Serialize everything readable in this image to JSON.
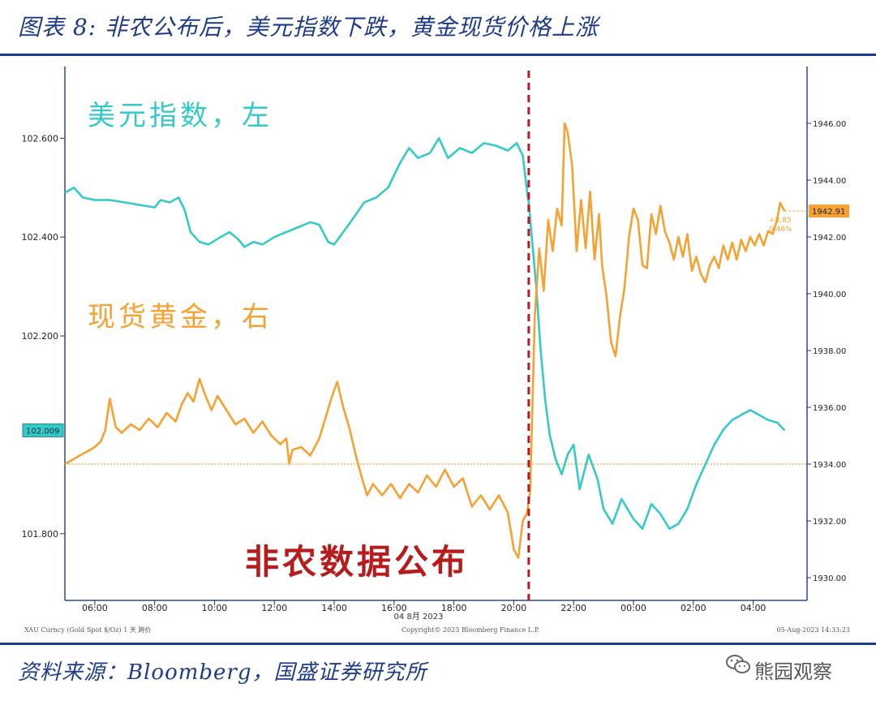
{
  "figure": {
    "title": "图表 8: 非农公布后，美元指数下跌，黄金现货价格上涨",
    "source": "资料来源：Bloomberg，国盛证券研究所",
    "watermark": "熊园观察"
  },
  "colors": {
    "usd": "#35c9c9",
    "gold": "#f5a233",
    "event_line": "#b71c1c",
    "ref_line": "#f5a233",
    "frame": "#2b4a8a",
    "brand_blue": "#1f3c88"
  },
  "chart_data": {
    "type": "line",
    "x_ticks": [
      "06:00",
      "08:00",
      "10:00",
      "12:00",
      "14:00",
      "16:00",
      "18:00",
      "20:00",
      "22:00",
      "00:00",
      "02:00",
      "04:00"
    ],
    "x_date_label": "04 8月 2023",
    "x_range_hours": [
      5.0,
      29.8
    ],
    "left_axis": {
      "ticks": [
        "101.800",
        "102.200",
        "102.400",
        "102.600"
      ],
      "tick_values": [
        101.8,
        102.2,
        102.4,
        102.6
      ],
      "range": [
        101.665,
        102.745
      ]
    },
    "right_axis": {
      "ticks": [
        "1930.00",
        "1932.00",
        "1934.00",
        "1936.00",
        "1938.00",
        "1940.00",
        "1942.00",
        "1944.00",
        "1946.00"
      ],
      "tick_values": [
        1930,
        1932,
        1934,
        1936,
        1938,
        1940,
        1942,
        1944,
        1946
      ],
      "range": [
        1929.2,
        1948.0
      ]
    },
    "event_time_hours": 20.5,
    "event_label": "非农数据公布",
    "reference_level_right": 1934.0,
    "series": [
      {
        "name": "美元指数，左",
        "axis": "left",
        "points": [
          [
            5.0,
            102.49
          ],
          [
            5.3,
            102.5
          ],
          [
            5.6,
            102.48
          ],
          [
            6.0,
            102.475
          ],
          [
            6.5,
            102.475
          ],
          [
            7.0,
            102.47
          ],
          [
            7.5,
            102.465
          ],
          [
            8.0,
            102.46
          ],
          [
            8.2,
            102.475
          ],
          [
            8.5,
            102.47
          ],
          [
            8.8,
            102.48
          ],
          [
            9.0,
            102.455
          ],
          [
            9.2,
            102.41
          ],
          [
            9.5,
            102.39
          ],
          [
            9.8,
            102.385
          ],
          [
            10.2,
            102.4
          ],
          [
            10.5,
            102.41
          ],
          [
            10.8,
            102.395
          ],
          [
            11.0,
            102.38
          ],
          [
            11.3,
            102.39
          ],
          [
            11.6,
            102.385
          ],
          [
            12.0,
            102.4
          ],
          [
            12.4,
            102.41
          ],
          [
            12.8,
            102.42
          ],
          [
            13.2,
            102.43
          ],
          [
            13.5,
            102.425
          ],
          [
            13.8,
            102.39
          ],
          [
            14.0,
            102.385
          ],
          [
            14.3,
            102.41
          ],
          [
            14.6,
            102.435
          ],
          [
            15.0,
            102.47
          ],
          [
            15.4,
            102.48
          ],
          [
            15.8,
            102.5
          ],
          [
            16.2,
            102.55
          ],
          [
            16.5,
            102.58
          ],
          [
            16.8,
            102.56
          ],
          [
            17.2,
            102.57
          ],
          [
            17.5,
            102.6
          ],
          [
            17.8,
            102.56
          ],
          [
            18.2,
            102.58
          ],
          [
            18.6,
            102.57
          ],
          [
            19.0,
            102.59
          ],
          [
            19.4,
            102.585
          ],
          [
            19.8,
            102.575
          ],
          [
            20.1,
            102.59
          ],
          [
            20.3,
            102.565
          ],
          [
            20.45,
            102.49
          ],
          [
            20.5,
            102.47
          ],
          [
            20.6,
            102.4
          ],
          [
            20.75,
            102.3
          ],
          [
            20.9,
            102.17
          ],
          [
            21.05,
            102.07
          ],
          [
            21.2,
            102.0
          ],
          [
            21.4,
            101.95
          ],
          [
            21.6,
            101.92
          ],
          [
            21.8,
            101.96
          ],
          [
            22.0,
            101.98
          ],
          [
            22.2,
            101.89
          ],
          [
            22.5,
            101.96
          ],
          [
            22.8,
            101.91
          ],
          [
            23.0,
            101.85
          ],
          [
            23.3,
            101.82
          ],
          [
            23.6,
            101.87
          ],
          [
            24.0,
            101.83
          ],
          [
            24.3,
            101.81
          ],
          [
            24.6,
            101.86
          ],
          [
            24.9,
            101.84
          ],
          [
            25.2,
            101.81
          ],
          [
            25.5,
            101.82
          ],
          [
            25.8,
            101.85
          ],
          [
            26.1,
            101.9
          ],
          [
            26.4,
            101.94
          ],
          [
            26.7,
            101.98
          ],
          [
            27.0,
            102.01
          ],
          [
            27.3,
            102.03
          ],
          [
            27.6,
            102.04
          ],
          [
            27.9,
            102.05
          ],
          [
            28.2,
            102.04
          ],
          [
            28.5,
            102.03
          ],
          [
            28.8,
            102.025
          ],
          [
            29.05,
            102.009
          ]
        ]
      },
      {
        "name": "现货黄金，右",
        "axis": "right",
        "points": [
          [
            5.0,
            1934.0
          ],
          [
            5.5,
            1934.3
          ],
          [
            6.0,
            1934.6
          ],
          [
            6.2,
            1934.8
          ],
          [
            6.35,
            1935.2
          ],
          [
            6.5,
            1936.3
          ],
          [
            6.7,
            1935.3
          ],
          [
            6.9,
            1935.1
          ],
          [
            7.2,
            1935.4
          ],
          [
            7.5,
            1935.2
          ],
          [
            7.8,
            1935.6
          ],
          [
            8.1,
            1935.3
          ],
          [
            8.4,
            1935.8
          ],
          [
            8.7,
            1935.5
          ],
          [
            8.9,
            1936.1
          ],
          [
            9.1,
            1936.5
          ],
          [
            9.3,
            1936.2
          ],
          [
            9.5,
            1937.0
          ],
          [
            9.7,
            1936.4
          ],
          [
            9.9,
            1935.9
          ],
          [
            10.1,
            1936.4
          ],
          [
            10.4,
            1935.9
          ],
          [
            10.7,
            1935.4
          ],
          [
            11.0,
            1935.6
          ],
          [
            11.3,
            1935.1
          ],
          [
            11.6,
            1935.5
          ],
          [
            11.9,
            1935.0
          ],
          [
            12.2,
            1934.7
          ],
          [
            12.4,
            1934.9
          ],
          [
            12.5,
            1934.0
          ],
          [
            12.6,
            1934.5
          ],
          [
            12.9,
            1934.6
          ],
          [
            13.2,
            1934.3
          ],
          [
            13.5,
            1934.9
          ],
          [
            13.7,
            1935.6
          ],
          [
            13.9,
            1936.3
          ],
          [
            14.1,
            1936.9
          ],
          [
            14.3,
            1936.0
          ],
          [
            14.5,
            1935.3
          ],
          [
            14.7,
            1934.4
          ],
          [
            14.9,
            1933.6
          ],
          [
            15.1,
            1932.9
          ],
          [
            15.3,
            1933.3
          ],
          [
            15.6,
            1932.9
          ],
          [
            15.9,
            1933.3
          ],
          [
            16.2,
            1932.8
          ],
          [
            16.5,
            1933.3
          ],
          [
            16.8,
            1933.0
          ],
          [
            17.1,
            1933.6
          ],
          [
            17.4,
            1933.2
          ],
          [
            17.7,
            1933.8
          ],
          [
            18.0,
            1933.2
          ],
          [
            18.3,
            1933.5
          ],
          [
            18.6,
            1932.5
          ],
          [
            18.9,
            1932.9
          ],
          [
            19.2,
            1932.4
          ],
          [
            19.5,
            1932.9
          ],
          [
            19.8,
            1932.3
          ],
          [
            20.0,
            1931.0
          ],
          [
            20.15,
            1930.7
          ],
          [
            20.3,
            1932.0
          ],
          [
            20.45,
            1932.3
          ],
          [
            20.55,
            1933.1
          ],
          [
            20.7,
            1939.2
          ],
          [
            20.85,
            1941.6
          ],
          [
            21.0,
            1940.1
          ],
          [
            21.15,
            1942.6
          ],
          [
            21.3,
            1941.5
          ],
          [
            21.45,
            1943.0
          ],
          [
            21.6,
            1942.4
          ],
          [
            21.7,
            1946.0
          ],
          [
            21.8,
            1945.7
          ],
          [
            21.95,
            1944.5
          ],
          [
            22.1,
            1941.5
          ],
          [
            22.25,
            1943.3
          ],
          [
            22.4,
            1941.6
          ],
          [
            22.55,
            1943.6
          ],
          [
            22.7,
            1941.2
          ],
          [
            22.85,
            1942.8
          ],
          [
            22.95,
            1941.0
          ],
          [
            23.1,
            1939.9
          ],
          [
            23.25,
            1938.3
          ],
          [
            23.4,
            1937.8
          ],
          [
            23.55,
            1939.2
          ],
          [
            23.7,
            1940.2
          ],
          [
            23.85,
            1942.0
          ],
          [
            24.0,
            1943.0
          ],
          [
            24.15,
            1942.6
          ],
          [
            24.3,
            1941.0
          ],
          [
            24.45,
            1940.9
          ],
          [
            24.6,
            1942.8
          ],
          [
            24.75,
            1942.1
          ],
          [
            24.9,
            1943.1
          ],
          [
            25.05,
            1942.2
          ],
          [
            25.2,
            1941.8
          ],
          [
            25.35,
            1941.2
          ],
          [
            25.5,
            1942.0
          ],
          [
            25.65,
            1941.3
          ],
          [
            25.8,
            1942.1
          ],
          [
            25.95,
            1940.8
          ],
          [
            26.1,
            1941.3
          ],
          [
            26.25,
            1940.7
          ],
          [
            26.4,
            1940.4
          ],
          [
            26.55,
            1941.0
          ],
          [
            26.7,
            1941.3
          ],
          [
            26.85,
            1940.9
          ],
          [
            27.0,
            1941.7
          ],
          [
            27.15,
            1941.2
          ],
          [
            27.3,
            1941.8
          ],
          [
            27.45,
            1941.2
          ],
          [
            27.6,
            1941.9
          ],
          [
            27.75,
            1941.5
          ],
          [
            27.9,
            1942.0
          ],
          [
            28.05,
            1941.7
          ],
          [
            28.2,
            1942.1
          ],
          [
            28.35,
            1941.7
          ],
          [
            28.5,
            1942.2
          ],
          [
            28.65,
            1942.1
          ],
          [
            28.8,
            1942.6
          ],
          [
            28.9,
            1943.2
          ],
          [
            29.05,
            1942.91
          ]
        ]
      }
    ],
    "last_values": {
      "left": "102.009",
      "right": "1942.91"
    },
    "change_note": {
      "abs": "+8.85",
      "pct": "0.46%"
    },
    "annotations": {
      "usd": "美元指数，左",
      "gold": "现货黄金，右"
    },
    "footer": {
      "left": "XAU Curncy (Gold Spot   $/Oz) 1 天   跨价",
      "center": "Copyright© 2023 Bloomberg Finance L.P.",
      "right": "05-Aug-2023 14:33:23"
    },
    "grid": false,
    "legend": "in-plot annotations"
  }
}
